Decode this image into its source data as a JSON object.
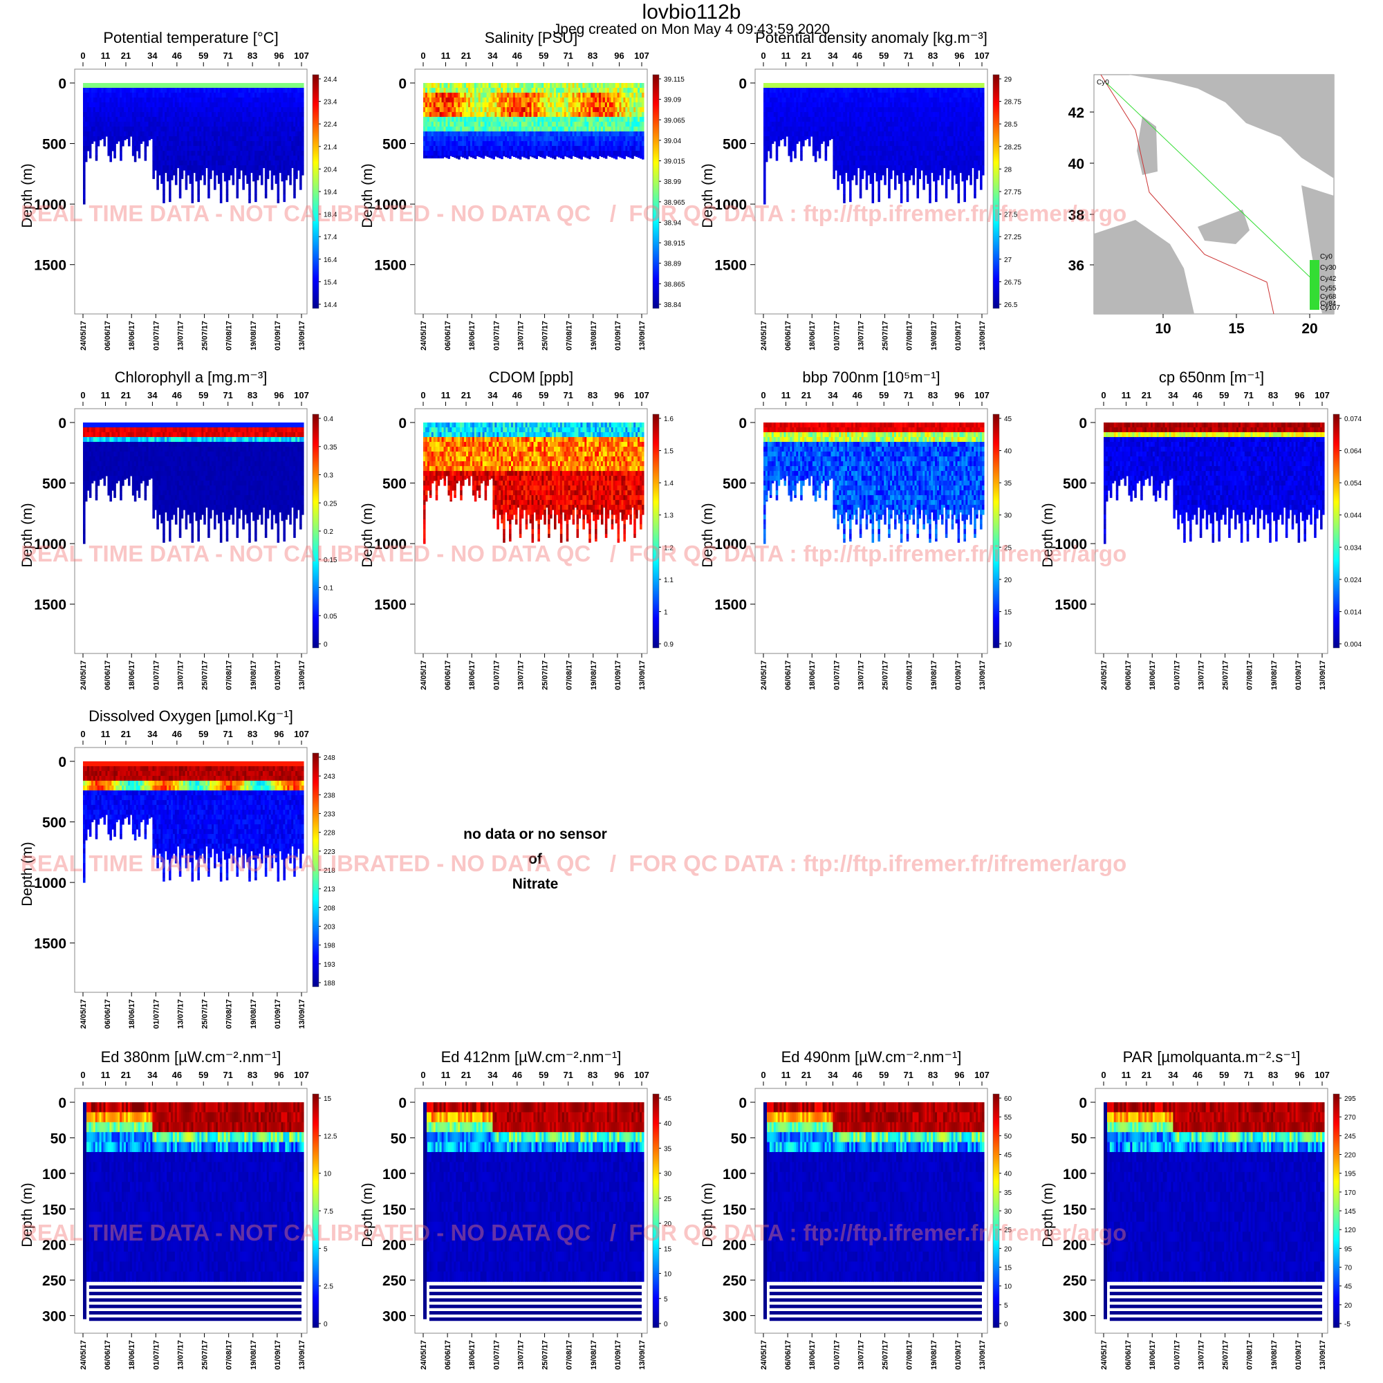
{
  "header": {
    "title": "lovbio112b",
    "subtitle": "Jpeg created on  Mon May  4 09:43:59 2020"
  },
  "watermark": "REAL TIME DATA - NOT CALIBRATED - NO DATA QC   /  FOR QC DATA : ftp://ftp.ifremer.fr/ifremer/argo",
  "colors": {
    "jet": [
      "#00008f",
      "#0000ff",
      "#0080ff",
      "#00ffff",
      "#80ff80",
      "#ffff00",
      "#ff8000",
      "#ff0000",
      "#800000"
    ],
    "frame": "#888888",
    "watermark": "#f47878",
    "land": "#b8b8b8",
    "track": "#33dd33",
    "coast": "#cc3333"
  },
  "axes": {
    "cycle_ticks": [
      "0",
      "11",
      "21",
      "34",
      "46",
      "59",
      "71",
      "83",
      "96",
      "107"
    ],
    "date_ticks": [
      "24/05/17",
      "06/06/17",
      "18/06/17",
      "01/07/17",
      "13/07/17",
      "25/07/17",
      "07/08/17",
      "19/08/17",
      "01/09/17",
      "13/09/17"
    ],
    "depth_ticks_deep": [
      "0",
      "500",
      "1000",
      "1500"
    ],
    "depth_ticks_shallow": [
      "0",
      "50",
      "100",
      "150",
      "200",
      "250",
      "300"
    ],
    "ylabel": "Depth (m)"
  },
  "chart_data": [
    {
      "id": "temp",
      "type": "heatmap",
      "title": "Potential temperature [°C]",
      "ylabel": "Depth (m)",
      "ylim": [
        1850,
        0
      ],
      "x_cycles": [
        0,
        107
      ],
      "colorbar_ticks": [
        "24.4",
        "23.4",
        "22.4",
        "21.4",
        "20.4",
        "19.4",
        "18.4",
        "17.4",
        "16.4",
        "15.4",
        "14.4"
      ],
      "depth_profile": "deep"
    },
    {
      "id": "psal",
      "type": "heatmap",
      "title": "Salinity [PSU]",
      "ylabel": "Depth (m)",
      "ylim": [
        1850,
        0
      ],
      "x_cycles": [
        0,
        107
      ],
      "colorbar_ticks": [
        "39.115",
        "39.09",
        "39.065",
        "39.04",
        "39.015",
        "38.99",
        "38.965",
        "38.94",
        "38.915",
        "38.89",
        "38.865",
        "38.84"
      ],
      "depth_profile": "salinity"
    },
    {
      "id": "dens",
      "type": "heatmap",
      "title": "Potential density anomaly [kg.m⁻³]",
      "ylabel": "Depth (m)",
      "ylim": [
        1850,
        0
      ],
      "x_cycles": [
        0,
        107
      ],
      "colorbar_ticks": [
        "29",
        "28.75",
        "28.5",
        "28.25",
        "28",
        "27.75",
        "27.5",
        "27.25",
        "27",
        "26.75",
        "26.5"
      ],
      "depth_profile": "deep"
    },
    {
      "id": "map",
      "type": "map",
      "x_ticks": [
        "10",
        "15",
        "20"
      ],
      "y_ticks": [
        "42",
        "40",
        "38",
        "36"
      ],
      "cycle_labels": [
        "Cy0",
        "Cy30",
        "Cy42",
        "Cy55",
        "Cy68",
        "Cy84",
        "Cy107"
      ]
    },
    {
      "id": "chla",
      "type": "heatmap",
      "title": "Chlorophyll a [mg.m⁻³]",
      "ylabel": "Depth (m)",
      "ylim": [
        1850,
        0
      ],
      "x_cycles": [
        0,
        107
      ],
      "colorbar_ticks": [
        "0.4",
        "0.35",
        "0.3",
        "0.25",
        "0.2",
        "0.15",
        "0.1",
        "0.05",
        "0"
      ],
      "depth_profile": "deep"
    },
    {
      "id": "cdom",
      "type": "heatmap",
      "title": "CDOM  [ppb]",
      "ylabel": "Depth (m)",
      "ylim": [
        1850,
        0
      ],
      "x_cycles": [
        0,
        107
      ],
      "colorbar_ticks": [
        "1.6",
        "1.5",
        "1.4",
        "1.3",
        "1.2",
        "1.1",
        "1",
        "0.9"
      ],
      "depth_profile": "deep"
    },
    {
      "id": "bbp",
      "type": "heatmap",
      "title": "bbp 700nm [10⁵m⁻¹]",
      "ylabel": "Depth (m)",
      "ylim": [
        1850,
        0
      ],
      "x_cycles": [
        0,
        107
      ],
      "colorbar_ticks": [
        "45",
        "40",
        "35",
        "30",
        "25",
        "20",
        "15",
        "10"
      ],
      "depth_profile": "deep"
    },
    {
      "id": "cp",
      "type": "heatmap",
      "title": "cp 650nm [m⁻¹]",
      "ylabel": "Depth (m)",
      "ylim": [
        1850,
        0
      ],
      "x_cycles": [
        0,
        107
      ],
      "colorbar_ticks": [
        "0.074",
        "0.064",
        "0.054",
        "0.044",
        "0.034",
        "0.024",
        "0.014",
        "0.004"
      ],
      "depth_profile": "deep"
    },
    {
      "id": "doxy",
      "type": "heatmap",
      "title": "Dissolved Oxygen [µmol.Kg⁻¹]",
      "ylabel": "Depth (m)",
      "ylim": [
        1850,
        0
      ],
      "x_cycles": [
        0,
        107
      ],
      "colorbar_ticks": [
        "248",
        "243",
        "238",
        "233",
        "228",
        "223",
        "218",
        "213",
        "208",
        "203",
        "198",
        "193",
        "188"
      ],
      "depth_profile": "deep"
    },
    {
      "id": "nitrate",
      "type": "heatmap",
      "message": [
        "no data or no sensor",
        "of",
        "Nitrate"
      ]
    },
    {
      "id": "ed380",
      "type": "heatmap",
      "title": "Ed 380nm [µW.cm⁻².nm⁻¹]",
      "ylabel": "Depth (m)",
      "ylim": [
        315,
        0
      ],
      "x_cycles": [
        0,
        107
      ],
      "colorbar_ticks": [
        "15",
        "12.5",
        "10",
        "7.5",
        "5",
        "2.5",
        "0"
      ],
      "depth_profile": "shallow"
    },
    {
      "id": "ed412",
      "type": "heatmap",
      "title": "Ed 412nm [µW.cm⁻².nm⁻¹]",
      "ylabel": "Depth (m)",
      "ylim": [
        315,
        0
      ],
      "x_cycles": [
        0,
        107
      ],
      "colorbar_ticks": [
        "45",
        "40",
        "35",
        "30",
        "25",
        "20",
        "15",
        "10",
        "5",
        "0"
      ],
      "depth_profile": "shallow"
    },
    {
      "id": "ed490",
      "type": "heatmap",
      "title": "Ed 490nm [µW.cm⁻².nm⁻¹]",
      "ylabel": "Depth (m)",
      "ylim": [
        315,
        0
      ],
      "x_cycles": [
        0,
        107
      ],
      "colorbar_ticks": [
        "60",
        "55",
        "50",
        "45",
        "40",
        "35",
        "30",
        "25",
        "20",
        "15",
        "10",
        "5",
        "0"
      ],
      "depth_profile": "shallow"
    },
    {
      "id": "par",
      "type": "heatmap",
      "title": "PAR [µmolquanta.m⁻².s⁻¹]",
      "ylabel": "Depth (m)",
      "ylim": [
        315,
        0
      ],
      "x_cycles": [
        0,
        107
      ],
      "colorbar_ticks": [
        "295",
        "270",
        "245",
        "220",
        "195",
        "170",
        "145",
        "120",
        "95",
        "70",
        "45",
        "20",
        "-5"
      ],
      "depth_profile": "shallow"
    }
  ]
}
